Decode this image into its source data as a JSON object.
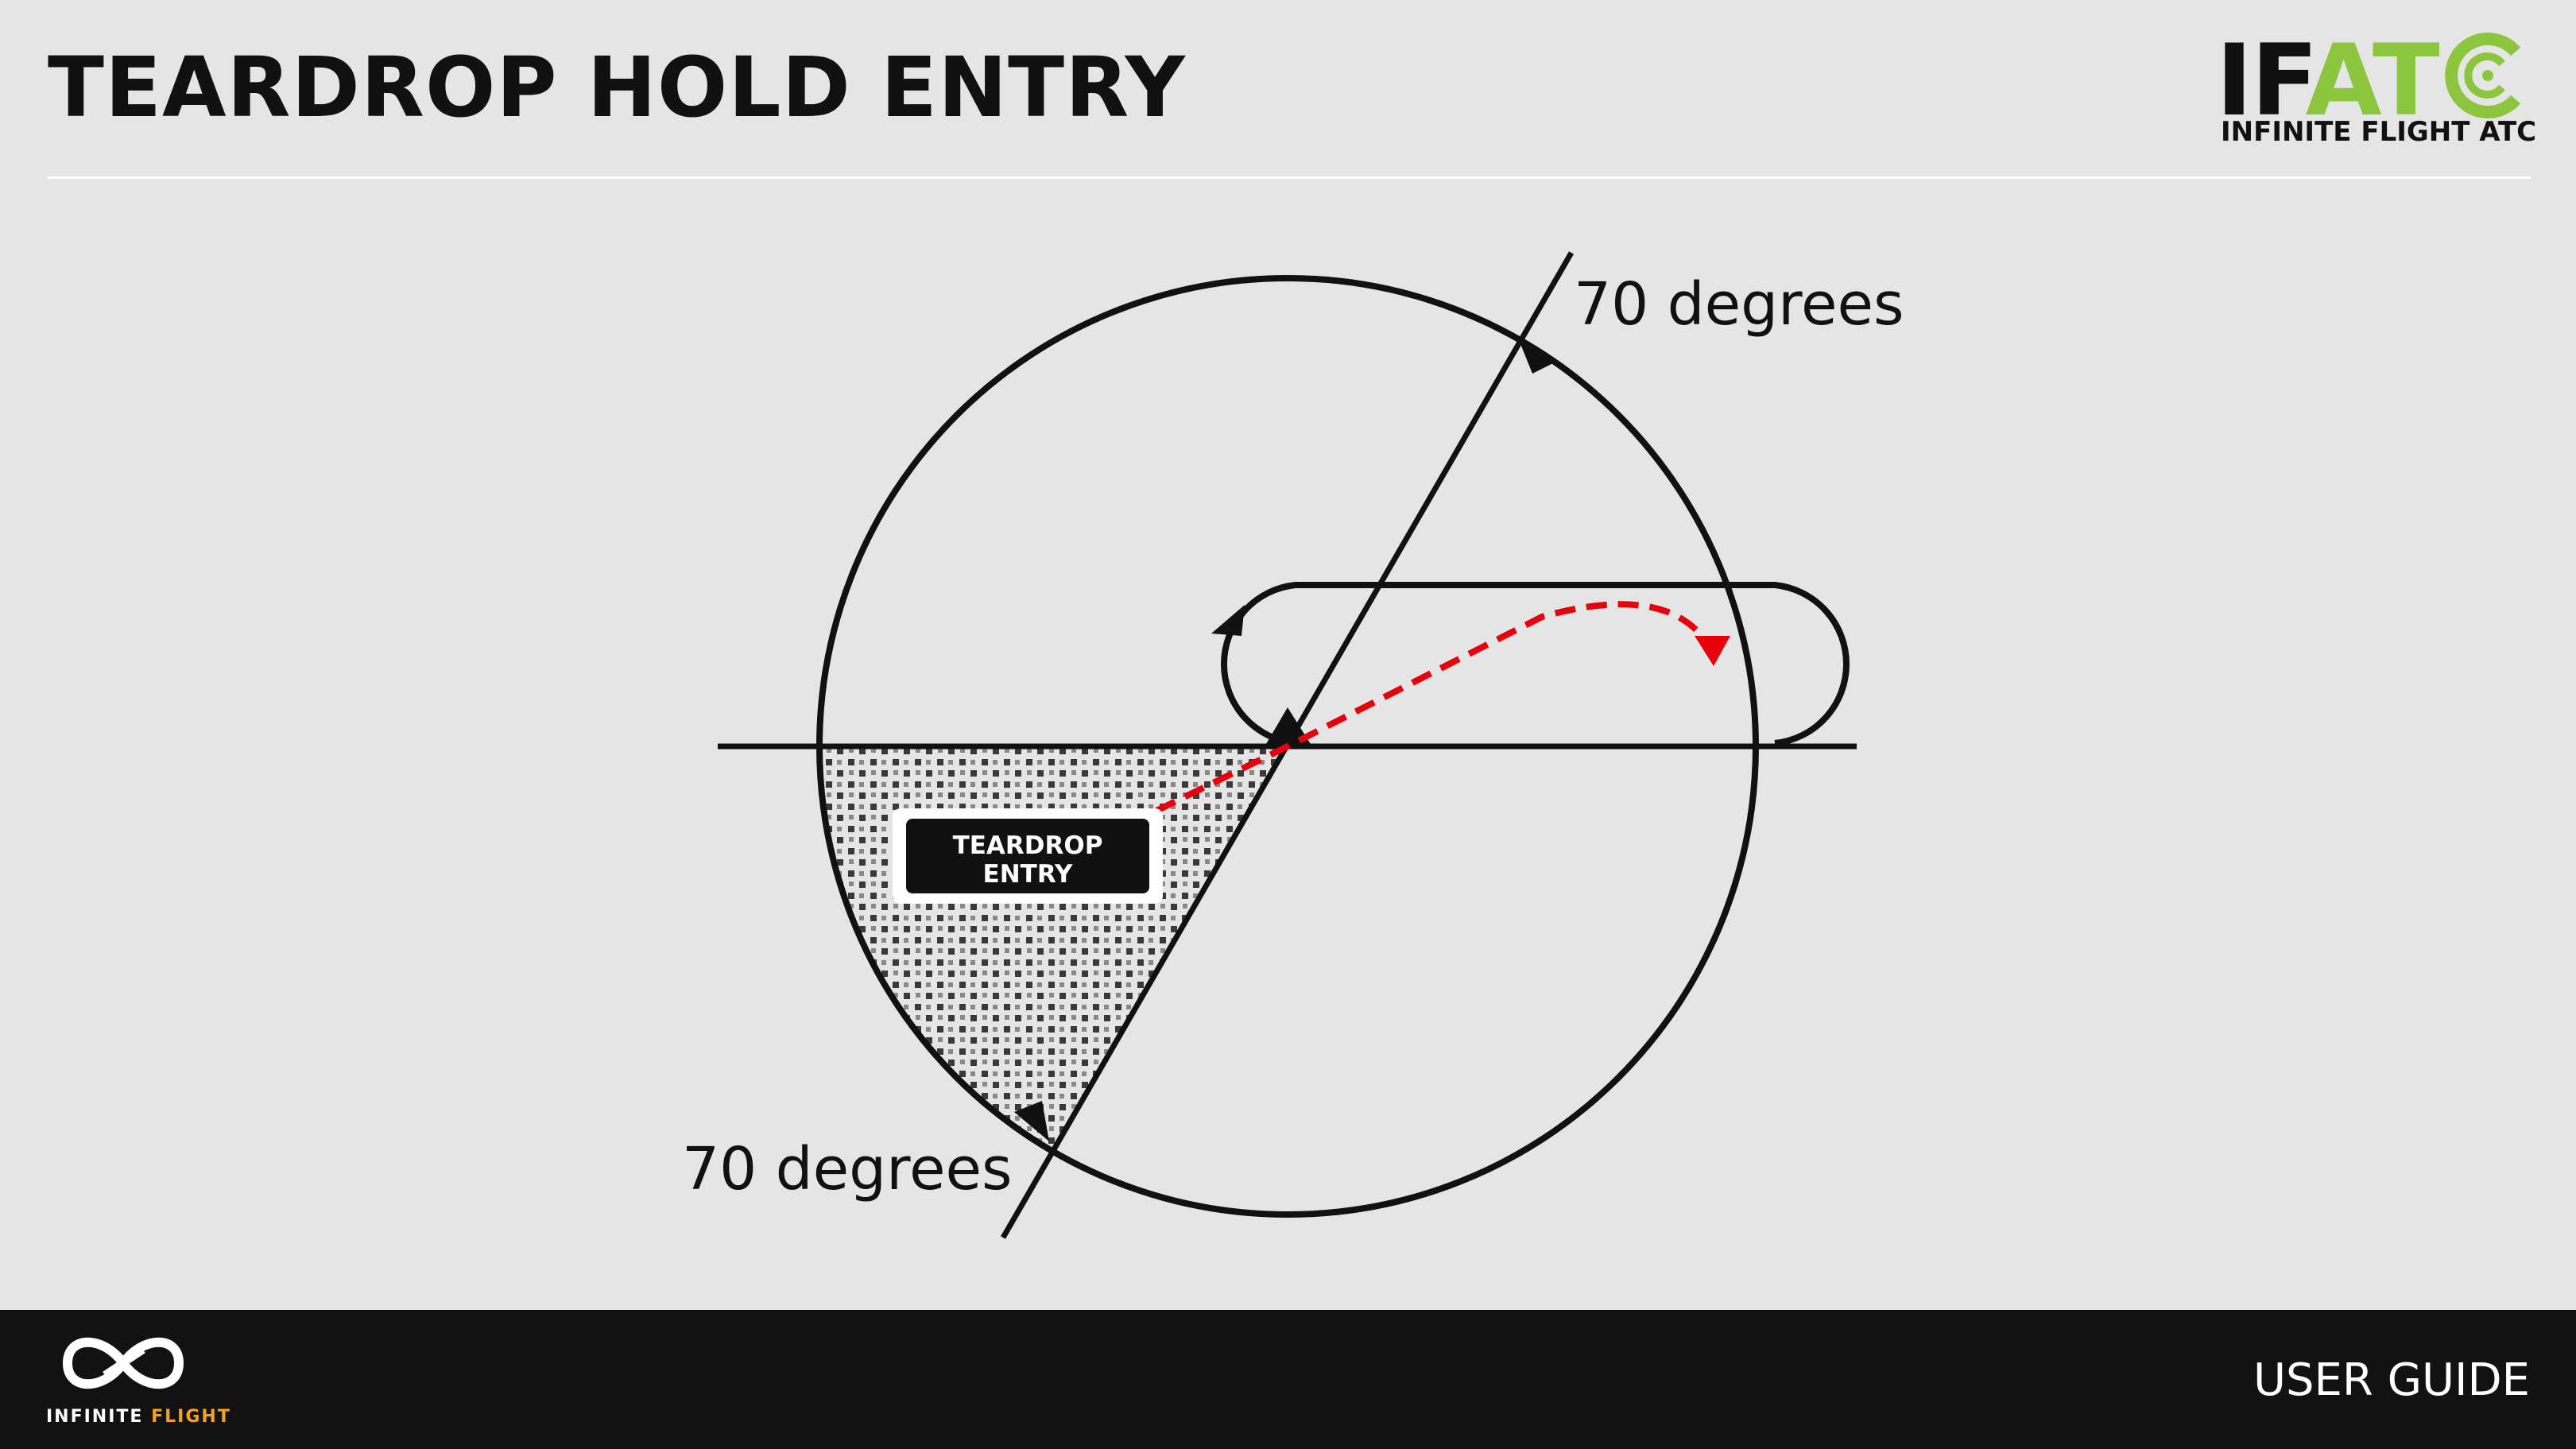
{
  "slide": {
    "title": "TEARDROP HOLD ENTRY"
  },
  "brand": {
    "letters_dark": "IF",
    "letters_green": "AT",
    "subtitle": "INFINITE FLIGHT ATC",
    "logo_icon": "ifatc-c-ring-icon",
    "accent_color": "#8cc63f"
  },
  "diagram": {
    "upper_angle_label": "70 degrees",
    "lower_angle_label": "70 degrees",
    "sector_label_line1": "TEARDROP",
    "sector_label_line2": "ENTRY",
    "entry_path_color": "#e8000b",
    "line_color": "#111111"
  },
  "footer": {
    "logo_icon": "infinite-flight-infinity-icon",
    "brand_main": "INFINITE",
    "brand_accent": "FLIGHT",
    "brand_accent_color": "#f7a21b",
    "guide_label": "USER GUIDE"
  }
}
